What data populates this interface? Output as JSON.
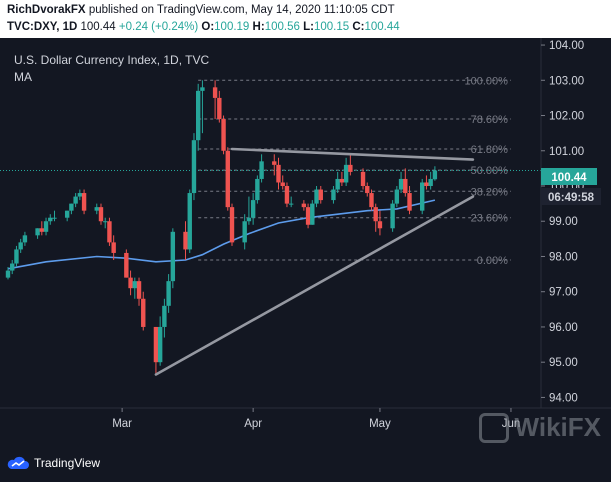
{
  "header": {
    "author": "RichDvorakFX",
    "published_text": "published on TradingView.com, May 14, 2020 11:10:05 CDT",
    "symbol": "TVC:DXY, 1D",
    "last": "100.44",
    "change": "+0.24 (+0.24%)",
    "o_label": "O:",
    "o_value": "100.19",
    "h_label": "H:",
    "h_value": "100.56",
    "l_label": "L:",
    "l_value": "100.15",
    "c_label": "C:",
    "c_value": "100.44"
  },
  "legend": {
    "title": "U.S. Dollar Currency Index, 1D, TVC",
    "indicator": "MA"
  },
  "price_tag": {
    "value": "100.44",
    "countdown": "06:49:58"
  },
  "footer": {
    "brand": "TradingView",
    "watermark": "WikiFX"
  },
  "colors": {
    "background": "#131722",
    "up_candle": "#26a69a",
    "down_candle": "#ef5350",
    "ma_line": "#5d9cec",
    "trendline": "#9598a1",
    "fib_line": "#787b86",
    "price_tag": "#26a69a"
  },
  "chart_data": {
    "type": "candlestick",
    "title": "U.S. Dollar Currency Index, 1D, TVC",
    "y_ticks": [
      "104.00",
      "103.00",
      "102.00",
      "101.00",
      "100.00",
      "99.00",
      "98.00",
      "97.00",
      "96.00",
      "95.00",
      "94.00"
    ],
    "ylim": [
      93.7,
      104.2
    ],
    "x_ticks": [
      {
        "label": "Mar",
        "date": "2020-03-01"
      },
      {
        "label": "Apr",
        "date": "2020-04-01"
      },
      {
        "label": "May",
        "date": "2020-05-01"
      },
      {
        "label": "Jun",
        "date": "2020-06-01"
      }
    ],
    "xlim": [
      "2020-02-03",
      "2020-06-10"
    ],
    "candles": [
      {
        "date": "2020-02-03",
        "o": 97.4,
        "h": 97.7,
        "l": 97.35,
        "c": 97.6
      },
      {
        "date": "2020-02-04",
        "o": 97.6,
        "h": 97.9,
        "l": 97.5,
        "c": 97.8
      },
      {
        "date": "2020-02-05",
        "o": 97.8,
        "h": 98.3,
        "l": 97.7,
        "c": 98.2
      },
      {
        "date": "2020-02-06",
        "o": 98.2,
        "h": 98.5,
        "l": 98.1,
        "c": 98.4
      },
      {
        "date": "2020-02-07",
        "o": 98.4,
        "h": 98.7,
        "l": 98.3,
        "c": 98.6
      },
      {
        "date": "2020-02-10",
        "o": 98.6,
        "h": 98.8,
        "l": 98.5,
        "c": 98.8
      },
      {
        "date": "2020-02-11",
        "o": 98.8,
        "h": 99.0,
        "l": 98.6,
        "c": 98.7
      },
      {
        "date": "2020-02-12",
        "o": 98.7,
        "h": 99.1,
        "l": 98.6,
        "c": 99.0
      },
      {
        "date": "2020-02-13",
        "o": 99.0,
        "h": 99.2,
        "l": 98.9,
        "c": 99.1
      },
      {
        "date": "2020-02-14",
        "o": 99.1,
        "h": 99.3,
        "l": 99.0,
        "c": 99.1
      },
      {
        "date": "2020-02-17",
        "o": 99.1,
        "h": 99.3,
        "l": 99.0,
        "c": 99.3
      },
      {
        "date": "2020-02-18",
        "o": 99.3,
        "h": 99.5,
        "l": 99.2,
        "c": 99.5
      },
      {
        "date": "2020-02-19",
        "o": 99.5,
        "h": 99.8,
        "l": 99.4,
        "c": 99.7
      },
      {
        "date": "2020-02-20",
        "o": 99.7,
        "h": 99.9,
        "l": 99.6,
        "c": 99.8
      },
      {
        "date": "2020-02-21",
        "o": 99.8,
        "h": 99.9,
        "l": 99.2,
        "c": 99.3
      },
      {
        "date": "2020-02-24",
        "o": 99.3,
        "h": 99.5,
        "l": 99.2,
        "c": 99.4
      },
      {
        "date": "2020-02-25",
        "o": 99.4,
        "h": 99.5,
        "l": 98.9,
        "c": 99.0
      },
      {
        "date": "2020-02-26",
        "o": 99.0,
        "h": 99.1,
        "l": 98.8,
        "c": 99.0
      },
      {
        "date": "2020-02-27",
        "o": 99.0,
        "h": 99.1,
        "l": 98.3,
        "c": 98.4
      },
      {
        "date": "2020-02-28",
        "o": 98.4,
        "h": 98.6,
        "l": 97.9,
        "c": 98.1
      },
      {
        "date": "2020-03-02",
        "o": 98.1,
        "h": 98.2,
        "l": 97.4,
        "c": 97.4
      },
      {
        "date": "2020-03-03",
        "o": 97.4,
        "h": 97.6,
        "l": 96.9,
        "c": 97.1
      },
      {
        "date": "2020-03-04",
        "o": 97.1,
        "h": 97.4,
        "l": 96.8,
        "c": 97.3
      },
      {
        "date": "2020-03-05",
        "o": 97.3,
        "h": 97.4,
        "l": 96.6,
        "c": 96.8
      },
      {
        "date": "2020-03-06",
        "o": 96.8,
        "h": 97.0,
        "l": 95.9,
        "c": 96.0
      },
      {
        "date": "2020-03-09",
        "o": 96.0,
        "h": 96.0,
        "l": 94.65,
        "c": 95.0
      },
      {
        "date": "2020-03-10",
        "o": 95.0,
        "h": 96.3,
        "l": 94.9,
        "c": 96.0
      },
      {
        "date": "2020-03-11",
        "o": 96.0,
        "h": 96.8,
        "l": 95.7,
        "c": 96.6
      },
      {
        "date": "2020-03-12",
        "o": 96.6,
        "h": 97.5,
        "l": 96.4,
        "c": 97.3
      },
      {
        "date": "2020-03-13",
        "o": 97.3,
        "h": 98.8,
        "l": 97.1,
        "c": 98.7
      },
      {
        "date": "2020-03-16",
        "o": 98.7,
        "h": 99.0,
        "l": 97.9,
        "c": 98.2
      },
      {
        "date": "2020-03-17",
        "o": 98.2,
        "h": 99.9,
        "l": 98.1,
        "c": 99.8
      },
      {
        "date": "2020-03-18",
        "o": 99.8,
        "h": 101.5,
        "l": 99.6,
        "c": 101.3
      },
      {
        "date": "2020-03-19",
        "o": 101.3,
        "h": 102.9,
        "l": 101.0,
        "c": 102.7
      },
      {
        "date": "2020-03-20",
        "o": 102.7,
        "h": 103.0,
        "l": 101.5,
        "c": 102.8
      },
      {
        "date": "2020-03-23",
        "o": 102.8,
        "h": 103.0,
        "l": 101.9,
        "c": 102.5
      },
      {
        "date": "2020-03-24",
        "o": 102.5,
        "h": 102.7,
        "l": 101.8,
        "c": 101.9
      },
      {
        "date": "2020-03-25",
        "o": 101.9,
        "h": 102.0,
        "l": 100.9,
        "c": 101.0
      },
      {
        "date": "2020-03-26",
        "o": 101.0,
        "h": 101.1,
        "l": 99.3,
        "c": 99.4
      },
      {
        "date": "2020-03-27",
        "o": 99.4,
        "h": 99.5,
        "l": 98.3,
        "c": 98.4
      },
      {
        "date": "2020-03-30",
        "o": 98.4,
        "h": 99.2,
        "l": 98.2,
        "c": 99.0
      },
      {
        "date": "2020-03-31",
        "o": 99.0,
        "h": 99.7,
        "l": 98.9,
        "c": 99.1
      },
      {
        "date": "2020-04-01",
        "o": 99.1,
        "h": 99.8,
        "l": 98.9,
        "c": 99.6
      },
      {
        "date": "2020-04-02",
        "o": 99.6,
        "h": 100.3,
        "l": 99.5,
        "c": 100.2
      },
      {
        "date": "2020-04-03",
        "o": 100.2,
        "h": 100.9,
        "l": 100.1,
        "c": 100.7
      },
      {
        "date": "2020-04-06",
        "o": 100.7,
        "h": 100.9,
        "l": 100.3,
        "c": 100.6
      },
      {
        "date": "2020-04-07",
        "o": 100.6,
        "h": 100.8,
        "l": 99.9,
        "c": 100.1
      },
      {
        "date": "2020-04-08",
        "o": 100.1,
        "h": 100.3,
        "l": 99.9,
        "c": 100.0
      },
      {
        "date": "2020-04-09",
        "o": 100.0,
        "h": 100.1,
        "l": 99.4,
        "c": 99.5
      },
      {
        "date": "2020-04-10",
        "o": 99.5,
        "h": 99.7,
        "l": 99.4,
        "c": 99.5
      },
      {
        "date": "2020-04-13",
        "o": 99.5,
        "h": 99.6,
        "l": 99.3,
        "c": 99.4
      },
      {
        "date": "2020-04-14",
        "o": 99.4,
        "h": 99.5,
        "l": 98.8,
        "c": 98.9
      },
      {
        "date": "2020-04-15",
        "o": 98.9,
        "h": 99.6,
        "l": 98.9,
        "c": 99.5
      },
      {
        "date": "2020-04-16",
        "o": 99.5,
        "h": 100.0,
        "l": 99.4,
        "c": 99.9
      },
      {
        "date": "2020-04-17",
        "o": 99.9,
        "h": 100.0,
        "l": 99.5,
        "c": 99.6
      },
      {
        "date": "2020-04-20",
        "o": 99.6,
        "h": 100.0,
        "l": 99.5,
        "c": 99.9
      },
      {
        "date": "2020-04-21",
        "o": 99.9,
        "h": 100.4,
        "l": 99.8,
        "c": 100.2
      },
      {
        "date": "2020-04-22",
        "o": 100.2,
        "h": 100.4,
        "l": 100.0,
        "c": 100.1
      },
      {
        "date": "2020-04-23",
        "o": 100.1,
        "h": 100.8,
        "l": 100.0,
        "c": 100.6
      },
      {
        "date": "2020-04-24",
        "o": 100.6,
        "h": 100.9,
        "l": 100.3,
        "c": 100.4
      },
      {
        "date": "2020-04-27",
        "o": 100.4,
        "h": 100.5,
        "l": 99.9,
        "c": 100.0
      },
      {
        "date": "2020-04-28",
        "o": 100.0,
        "h": 100.1,
        "l": 99.7,
        "c": 99.8
      },
      {
        "date": "2020-04-29",
        "o": 99.8,
        "h": 99.9,
        "l": 99.3,
        "c": 99.4
      },
      {
        "date": "2020-04-30",
        "o": 99.4,
        "h": 99.5,
        "l": 98.7,
        "c": 99.0
      },
      {
        "date": "2020-05-01",
        "o": 99.0,
        "h": 99.3,
        "l": 98.6,
        "c": 98.8
      },
      {
        "date": "2020-05-04",
        "o": 98.8,
        "h": 99.6,
        "l": 98.7,
        "c": 99.5
      },
      {
        "date": "2020-05-05",
        "o": 99.5,
        "h": 100.0,
        "l": 99.4,
        "c": 99.9
      },
      {
        "date": "2020-05-06",
        "o": 99.9,
        "h": 100.4,
        "l": 99.8,
        "c": 100.2
      },
      {
        "date": "2020-05-07",
        "o": 100.2,
        "h": 100.5,
        "l": 99.7,
        "c": 99.8
      },
      {
        "date": "2020-05-08",
        "o": 99.8,
        "h": 100.0,
        "l": 99.2,
        "c": 99.3
      },
      {
        "date": "2020-05-11",
        "o": 99.3,
        "h": 100.2,
        "l": 99.2,
        "c": 100.1
      },
      {
        "date": "2020-05-12",
        "o": 100.1,
        "h": 100.3,
        "l": 99.9,
        "c": 100.0
      },
      {
        "date": "2020-05-13",
        "o": 100.0,
        "h": 100.4,
        "l": 99.9,
        "c": 100.2
      },
      {
        "date": "2020-05-14",
        "o": 100.19,
        "h": 100.56,
        "l": 100.15,
        "c": 100.44
      }
    ],
    "ma_series": [
      {
        "date": "2020-02-03",
        "v": 97.65
      },
      {
        "date": "2020-02-12",
        "v": 97.85
      },
      {
        "date": "2020-02-24",
        "v": 98.0
      },
      {
        "date": "2020-03-02",
        "v": 97.95
      },
      {
        "date": "2020-03-09",
        "v": 97.85
      },
      {
        "date": "2020-03-16",
        "v": 97.9
      },
      {
        "date": "2020-03-20",
        "v": 98.05
      },
      {
        "date": "2020-03-25",
        "v": 98.35
      },
      {
        "date": "2020-03-31",
        "v": 98.65
      },
      {
        "date": "2020-04-07",
        "v": 98.95
      },
      {
        "date": "2020-04-14",
        "v": 99.1
      },
      {
        "date": "2020-04-21",
        "v": 99.2
      },
      {
        "date": "2020-04-28",
        "v": 99.3
      },
      {
        "date": "2020-05-05",
        "v": 99.35
      },
      {
        "date": "2020-05-14",
        "v": 99.6
      }
    ],
    "fib_levels": [
      {
        "label": "100.00%",
        "value": 103.0
      },
      {
        "label": "78.60%",
        "value": 101.9
      },
      {
        "label": "61.80%",
        "value": 101.05
      },
      {
        "label": "50.00%",
        "value": 100.45
      },
      {
        "label": "38.20%",
        "value": 99.85
      },
      {
        "label": "23.60%",
        "value": 99.1
      },
      {
        "label": "0.00%",
        "value": 97.9
      }
    ],
    "fib_range": {
      "start": "2020-03-19",
      "end": "2020-06-01"
    },
    "trendlines": [
      {
        "start_date": "2020-03-09",
        "start_value": 94.65,
        "end_date": "2020-05-23",
        "end_value": 99.7
      },
      {
        "start_date": "2020-03-27",
        "start_value": 101.05,
        "end_date": "2020-05-23",
        "end_value": 100.75
      }
    ],
    "last_value": 100.44
  }
}
